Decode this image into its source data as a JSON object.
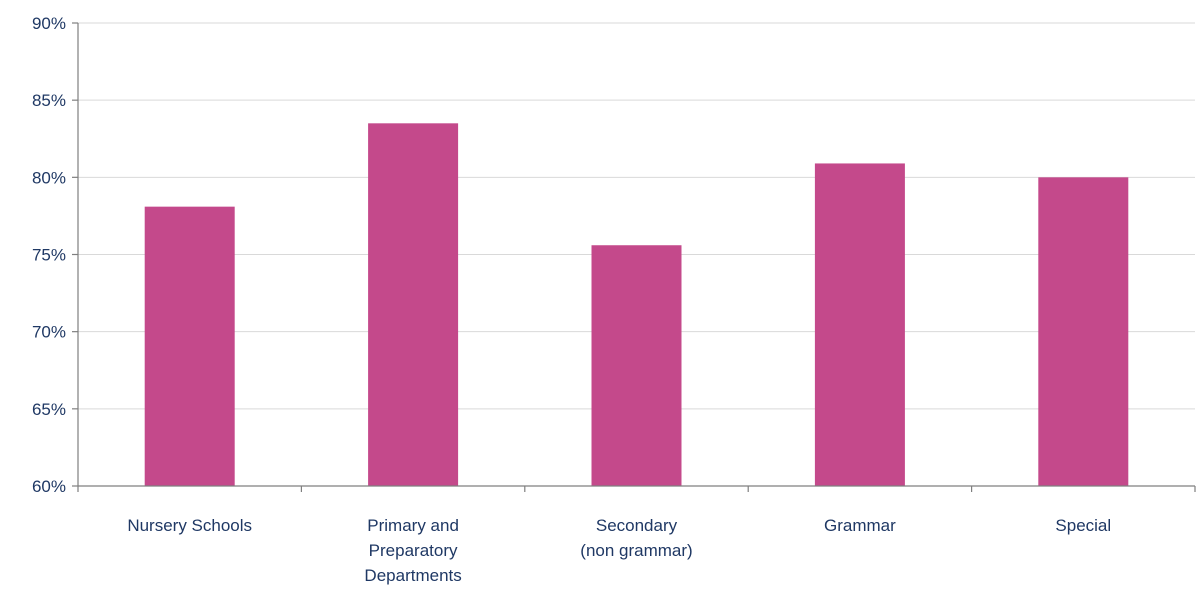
{
  "chart_data": {
    "type": "bar",
    "categories": [
      [
        "Nursery Schools"
      ],
      [
        "Primary and",
        "Preparatory",
        "Departments"
      ],
      [
        "Secondary",
        "(non grammar)"
      ],
      [
        "Grammar"
      ],
      [
        "Special"
      ]
    ],
    "values": [
      78.1,
      83.5,
      75.6,
      80.9,
      80.0
    ],
    "ylim": [
      60,
      90
    ],
    "yticks": [
      60,
      65,
      70,
      75,
      80,
      85,
      90
    ],
    "ytick_labels": [
      "60%",
      "65%",
      "70%",
      "75%",
      "80%",
      "85%",
      "90%"
    ],
    "bar_color": "#c4498b",
    "grid": true,
    "title": "",
    "xlabel": "",
    "ylabel": ""
  }
}
